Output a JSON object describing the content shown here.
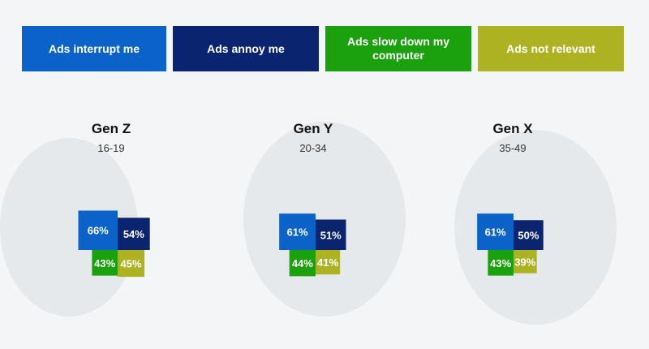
{
  "legend": [
    {
      "label": "Ads interrupt me",
      "color": "#0b63c9"
    },
    {
      "label": "Ads annoy me",
      "color": "#0a2470"
    },
    {
      "label": "Ads slow down my computer",
      "color": "#1ba10d"
    },
    {
      "label": "Ads not relevant",
      "color": "#adb223"
    }
  ],
  "chart_data": {
    "type": "bar",
    "categories": [
      "Gen Z",
      "Gen Y",
      "Gen X"
    ],
    "subtitles": [
      "16-19",
      "20-34",
      "35-49"
    ],
    "series": [
      {
        "name": "Ads interrupt me",
        "values": [
          66,
          61,
          61
        ],
        "labels": [
          "66%",
          "61%",
          "61%"
        ]
      },
      {
        "name": "Ads annoy me",
        "values": [
          54,
          51,
          50
        ],
        "labels": [
          "54%",
          "51%",
          "50%"
        ]
      },
      {
        "name": "Ads slow down my computer",
        "values": [
          43,
          44,
          43
        ],
        "labels": [
          "43%",
          "44%",
          "43%"
        ]
      },
      {
        "name": "Ads not relevant",
        "values": [
          45,
          41,
          39
        ],
        "labels": [
          "45%",
          "41%",
          "39%"
        ]
      }
    ]
  }
}
